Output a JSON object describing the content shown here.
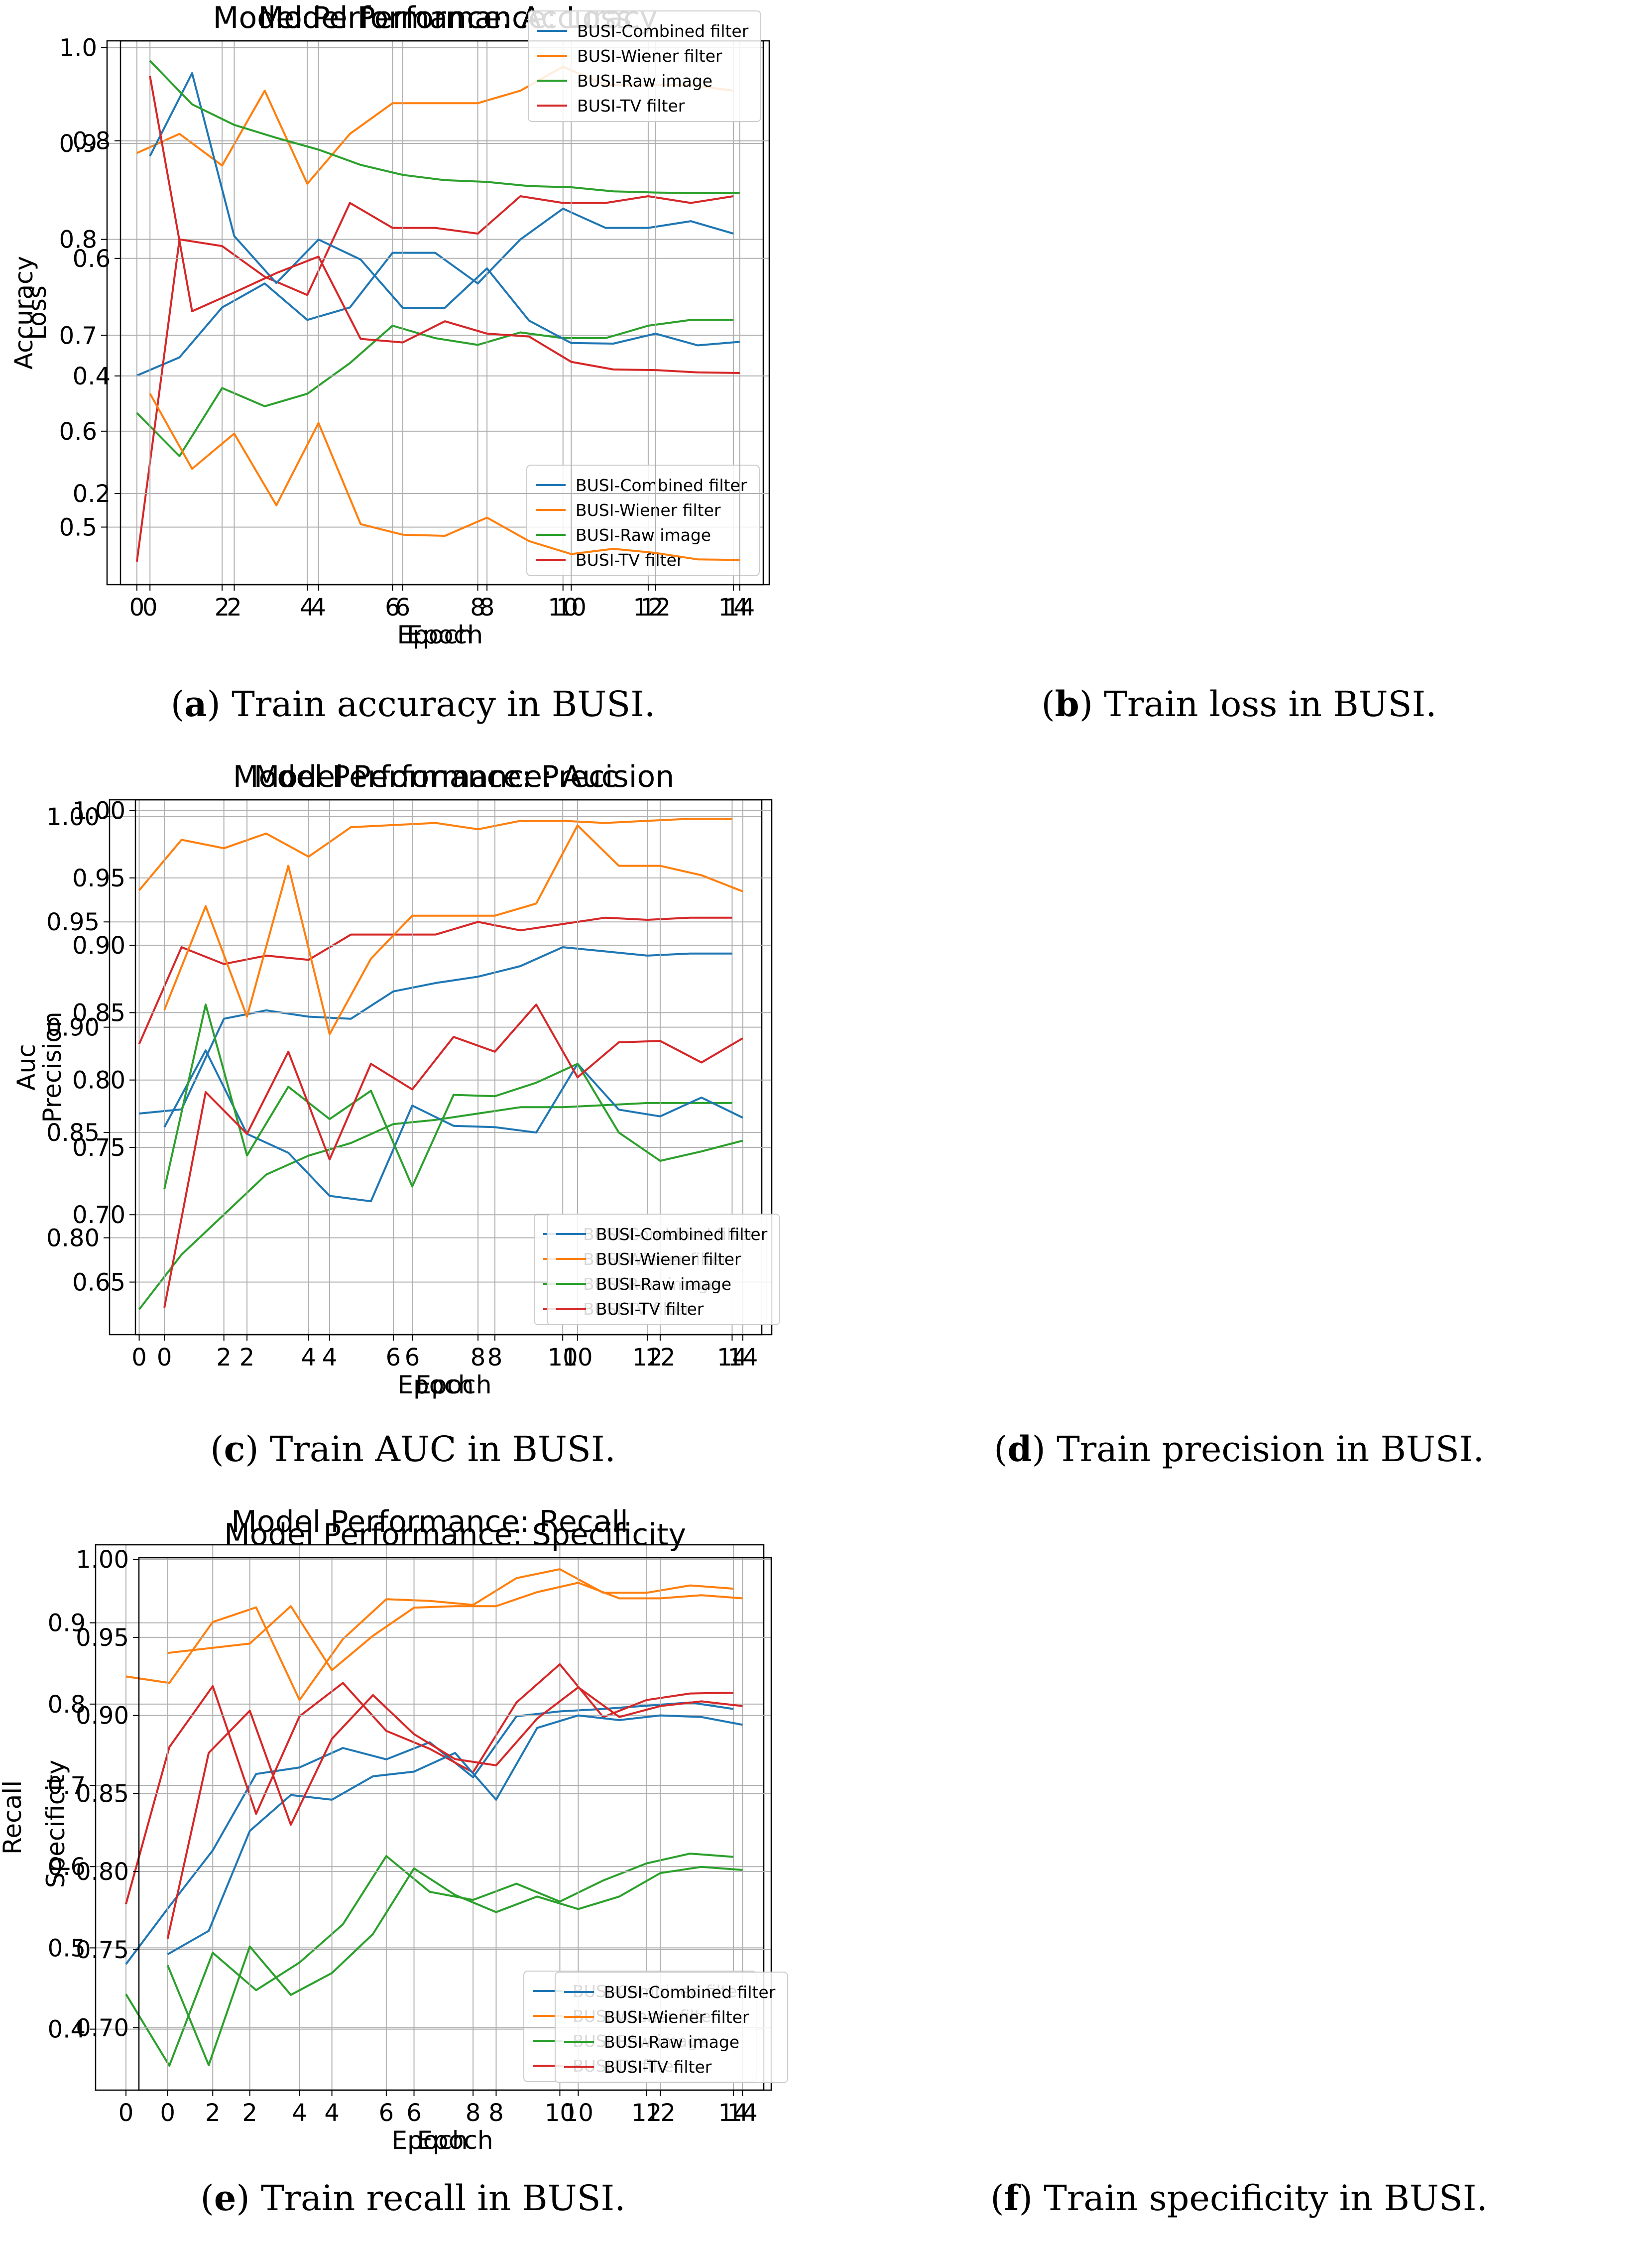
{
  "colors": {
    "combined": "#1f77b4",
    "wiener": "#ff7f0e",
    "raw": "#2ca02c",
    "tv": "#d62728",
    "grid": "#b0b0b0"
  },
  "panels": [
    {
      "caption_letter": "a",
      "caption_paren_open": "(",
      "caption_paren_close": ")",
      "caption_text": " Train accuracy in BUSI."
    },
    {
      "caption_letter": "b",
      "caption_paren_open": "(",
      "caption_paren_close": ")",
      "caption_text": " Train loss in BUSI."
    },
    {
      "caption_letter": "c",
      "caption_paren_open": "(",
      "caption_paren_close": ")",
      "caption_text": " Train AUC in BUSI."
    },
    {
      "caption_letter": "d",
      "caption_paren_open": "(",
      "caption_paren_close": ")",
      "caption_text": " Train precision in BUSI."
    },
    {
      "caption_letter": "e",
      "caption_paren_open": "(",
      "caption_paren_close": ")",
      "caption_text": " Train recall in BUSI."
    },
    {
      "caption_letter": "f",
      "caption_paren_open": "(",
      "caption_paren_close": ")",
      "caption_text": " Train specificity in BUSI."
    }
  ],
  "chart_data": [
    {
      "type": "line",
      "title": "Model Performance: Accuracy",
      "xlabel": "Epoch",
      "ylabel": "Accuracy",
      "x": [
        0,
        1,
        2,
        3,
        4,
        5,
        6,
        7,
        8,
        9,
        10,
        11,
        12,
        13,
        14
      ],
      "xticks": [
        0,
        2,
        4,
        6,
        8,
        10,
        12,
        14
      ],
      "xlim": [
        -0.7,
        14.7
      ],
      "ylim": [
        0.44,
        1.007
      ],
      "yticks": [
        "0.5",
        "0.6",
        "0.7",
        "0.8",
        "0.9",
        "1.0"
      ],
      "grid": true,
      "legend_position": "lower-right",
      "series": [
        {
          "name": "BUSI-Combined filter",
          "color_key": "combined",
          "values": [
            0.658,
            0.677,
            0.729,
            0.754,
            0.716,
            0.729,
            0.786,
            0.786,
            0.754,
            0.8,
            0.832,
            0.812,
            0.812,
            0.819,
            0.806
          ]
        },
        {
          "name": "BUSI-Wiener filter",
          "color_key": "wiener",
          "values": [
            0.89,
            0.91,
            0.877,
            0.955,
            0.858,
            0.91,
            0.942,
            0.942,
            0.942,
            0.955,
            0.98,
            0.961,
            0.961,
            0.961,
            0.955
          ]
        },
        {
          "name": "BUSI-Raw image",
          "color_key": "raw",
          "values": [
            0.619,
            0.574,
            0.645,
            0.626,
            0.639,
            0.671,
            0.71,
            0.697,
            0.69,
            0.703,
            0.697,
            0.697,
            0.71,
            0.716,
            0.716
          ]
        },
        {
          "name": "BUSI-TV filter",
          "color_key": "tv",
          "values": [
            0.464,
            0.8,
            0.793,
            0.761,
            0.742,
            0.838,
            0.812,
            0.812,
            0.806,
            0.845,
            0.838,
            0.838,
            0.845,
            0.838,
            0.845
          ]
        }
      ]
    },
    {
      "type": "line",
      "title": "Model Performance: Loss",
      "xlabel": "Epoch",
      "ylabel": "Loss",
      "x": [
        0,
        1,
        2,
        3,
        4,
        5,
        6,
        7,
        8,
        9,
        10,
        11,
        12,
        13,
        14
      ],
      "xticks": [
        0,
        2,
        4,
        6,
        8,
        10,
        12,
        14
      ],
      "xlim": [
        -0.7,
        14.7
      ],
      "ylim": [
        0.045,
        0.97
      ],
      "yticks": [
        "0.2",
        "0.4",
        "0.6",
        "0.8"
      ],
      "grid": true,
      "legend_position": "upper-right",
      "series": [
        {
          "name": "BUSI-Combined filter",
          "color_key": "combined",
          "values": [
            0.774,
            0.915,
            0.638,
            0.558,
            0.632,
            0.598,
            0.516,
            0.516,
            0.583,
            0.494,
            0.456,
            0.455,
            0.472,
            0.452,
            0.458
          ]
        },
        {
          "name": "BUSI-Wiener filter",
          "color_key": "wiener",
          "values": [
            0.37,
            0.242,
            0.302,
            0.18,
            0.32,
            0.148,
            0.13,
            0.128,
            0.159,
            0.119,
            0.097,
            0.106,
            0.099,
            0.088,
            0.087
          ]
        },
        {
          "name": "BUSI-Raw image",
          "color_key": "raw",
          "values": [
            0.936,
            0.862,
            0.827,
            0.805,
            0.785,
            0.759,
            0.742,
            0.733,
            0.73,
            0.723,
            0.721,
            0.714,
            0.712,
            0.711,
            0.711
          ]
        },
        {
          "name": "BUSI-TV filter",
          "color_key": "tv",
          "values": [
            0.91,
            0.51,
            0.542,
            0.575,
            0.603,
            0.463,
            0.457,
            0.493,
            0.472,
            0.467,
            0.424,
            0.411,
            0.41,
            0.406,
            0.405
          ]
        }
      ]
    },
    {
      "type": "line",
      "title": "Model Performance: Auc",
      "xlabel": "Epoch",
      "ylabel": "Auc",
      "x": [
        0,
        1,
        2,
        3,
        4,
        5,
        6,
        7,
        8,
        9,
        10,
        11,
        12,
        13,
        14
      ],
      "xticks": [
        0,
        2,
        4,
        6,
        8,
        10,
        12,
        14
      ],
      "xlim": [
        -0.7,
        14.7
      ],
      "ylim": [
        0.754,
        1.008
      ],
      "yticks": [
        "0.80",
        "0.85",
        "0.90",
        "0.95",
        "1.00"
      ],
      "grid": true,
      "legend_position": "lower-right",
      "series": [
        {
          "name": "BUSI-Combined filter",
          "color_key": "combined",
          "values": [
            0.859,
            0.861,
            0.904,
            0.908,
            0.905,
            0.904,
            0.917,
            0.921,
            0.924,
            0.929,
            0.938,
            0.936,
            0.934,
            0.935,
            0.935
          ]
        },
        {
          "name": "BUSI-Wiener filter",
          "color_key": "wiener",
          "values": [
            0.965,
            0.989,
            0.985,
            0.992,
            0.981,
            0.995,
            0.996,
            0.997,
            0.994,
            0.998,
            0.998,
            0.997,
            0.998,
            0.999,
            0.999
          ]
        },
        {
          "name": "BUSI-Raw image",
          "color_key": "raw",
          "values": [
            0.766,
            0.792,
            0.811,
            0.83,
            0.839,
            0.845,
            0.854,
            0.856,
            0.859,
            0.862,
            0.862,
            0.863,
            0.864,
            0.864,
            0.864
          ]
        },
        {
          "name": "BUSI-TV filter",
          "color_key": "tv",
          "values": [
            0.892,
            0.938,
            0.93,
            0.934,
            0.932,
            0.944,
            0.944,
            0.944,
            0.95,
            0.946,
            0.949,
            0.952,
            0.951,
            0.952,
            0.952
          ]
        }
      ]
    },
    {
      "type": "line",
      "title": "Model Performance: Precision",
      "xlabel": "Epoch",
      "ylabel": "Precision",
      "x": [
        0,
        1,
        2,
        3,
        4,
        5,
        6,
        7,
        8,
        9,
        10,
        11,
        12,
        13,
        14
      ],
      "xticks": [
        0,
        2,
        4,
        6,
        8,
        10,
        12,
        14
      ],
      "xlim": [
        -0.7,
        14.7
      ],
      "ylim": [
        0.611,
        1.008
      ],
      "yticks": [
        "0.65",
        "0.70",
        "0.75",
        "0.80",
        "0.85",
        "0.90",
        "0.95",
        "1.00"
      ],
      "grid": true,
      "legend_position": "lower-right",
      "series": [
        {
          "name": "BUSI-Combined filter",
          "color_key": "combined",
          "values": [
            0.765,
            0.822,
            0.76,
            0.746,
            0.714,
            0.71,
            0.781,
            0.766,
            0.765,
            0.761,
            0.812,
            0.778,
            0.773,
            0.787,
            0.772
          ]
        },
        {
          "name": "BUSI-Wiener filter",
          "color_key": "wiener",
          "values": [
            0.852,
            0.929,
            0.847,
            0.959,
            0.834,
            0.89,
            0.922,
            0.922,
            0.922,
            0.931,
            0.989,
            0.959,
            0.959,
            0.952,
            0.94
          ]
        },
        {
          "name": "BUSI-Raw image",
          "color_key": "raw",
          "values": [
            0.719,
            0.856,
            0.744,
            0.795,
            0.771,
            0.792,
            0.721,
            0.789,
            0.788,
            0.798,
            0.812,
            0.761,
            0.74,
            0.747,
            0.755
          ]
        },
        {
          "name": "BUSI-TV filter",
          "color_key": "tv",
          "values": [
            0.631,
            0.791,
            0.76,
            0.821,
            0.741,
            0.812,
            0.793,
            0.832,
            0.821,
            0.856,
            0.802,
            0.828,
            0.829,
            0.813,
            0.831
          ]
        }
      ]
    },
    {
      "type": "line",
      "title": "Model Performance: Recall",
      "xlabel": "Epoch",
      "ylabel": "Recall",
      "x": [
        0,
        1,
        2,
        3,
        4,
        5,
        6,
        7,
        8,
        9,
        10,
        11,
        12,
        13,
        14
      ],
      "xticks": [
        0,
        2,
        4,
        6,
        8,
        10,
        12,
        14
      ],
      "xlim": [
        -0.7,
        14.7
      ],
      "ylim": [
        0.325,
        0.996
      ],
      "yticks": [
        "0.4",
        "0.5",
        "0.6",
        "0.7",
        "0.8",
        "0.9"
      ],
      "grid": true,
      "legend_position": "lower-right",
      "series": [
        {
          "name": "BUSI-Combined filter",
          "color_key": "combined",
          "values": [
            0.48,
            0.551,
            0.62,
            0.714,
            0.722,
            0.746,
            0.732,
            0.753,
            0.71,
            0.785,
            0.791,
            0.794,
            0.798,
            0.802,
            0.794
          ]
        },
        {
          "name": "BUSI-Wiener filter",
          "color_key": "wiener",
          "values": [
            0.834,
            0.826,
            0.901,
            0.919,
            0.805,
            0.88,
            0.929,
            0.927,
            0.922,
            0.955,
            0.966,
            0.937,
            0.937,
            0.946,
            0.942
          ]
        },
        {
          "name": "BUSI-Raw image",
          "color_key": "raw",
          "values": [
            0.443,
            0.355,
            0.494,
            0.448,
            0.482,
            0.529,
            0.613,
            0.569,
            0.559,
            0.579,
            0.557,
            0.583,
            0.604,
            0.616,
            0.612
          ]
        },
        {
          "name": "BUSI-TV filter",
          "color_key": "tv",
          "values": [
            0.554,
            0.747,
            0.822,
            0.665,
            0.785,
            0.826,
            0.767,
            0.745,
            0.716,
            0.802,
            0.849,
            0.784,
            0.805,
            0.813,
            0.814
          ]
        }
      ]
    },
    {
      "type": "line",
      "title": "Model Performance: Specificity",
      "xlabel": "Epoch",
      "ylabel": "Specificity",
      "x": [
        0,
        1,
        2,
        3,
        4,
        5,
        6,
        7,
        8,
        9,
        10,
        11,
        12,
        13,
        14
      ],
      "xticks": [
        0,
        2,
        4,
        6,
        8,
        10,
        12,
        14
      ],
      "xlim": [
        -0.7,
        14.7
      ],
      "ylim": [
        0.66,
        1.001
      ],
      "yticks": [
        "0.70",
        "0.75",
        "0.80",
        "0.85",
        "0.90",
        "0.95",
        "1.00"
      ],
      "grid": true,
      "legend_position": "lower-right",
      "series": [
        {
          "name": "BUSI-Combined filter",
          "color_key": "combined",
          "values": [
            0.747,
            0.762,
            0.826,
            0.849,
            0.846,
            0.861,
            0.864,
            0.876,
            0.846,
            0.892,
            0.9,
            0.897,
            0.9,
            0.899,
            0.894
          ]
        },
        {
          "name": "BUSI-Wiener filter",
          "color_key": "wiener",
          "values": [
            0.94,
            0.943,
            0.946,
            0.97,
            0.929,
            0.951,
            0.969,
            0.97,
            0.97,
            0.979,
            0.985,
            0.975,
            0.975,
            0.977,
            0.975
          ]
        },
        {
          "name": "BUSI-Raw image",
          "color_key": "raw",
          "values": [
            0.74,
            0.676,
            0.752,
            0.721,
            0.735,
            0.76,
            0.802,
            0.785,
            0.774,
            0.784,
            0.776,
            0.784,
            0.799,
            0.803,
            0.801
          ]
        },
        {
          "name": "BUSI-TV filter",
          "color_key": "tv",
          "values": [
            0.757,
            0.876,
            0.903,
            0.83,
            0.885,
            0.913,
            0.888,
            0.872,
            0.868,
            0.898,
            0.918,
            0.899,
            0.906,
            0.909,
            0.906
          ]
        }
      ]
    }
  ]
}
